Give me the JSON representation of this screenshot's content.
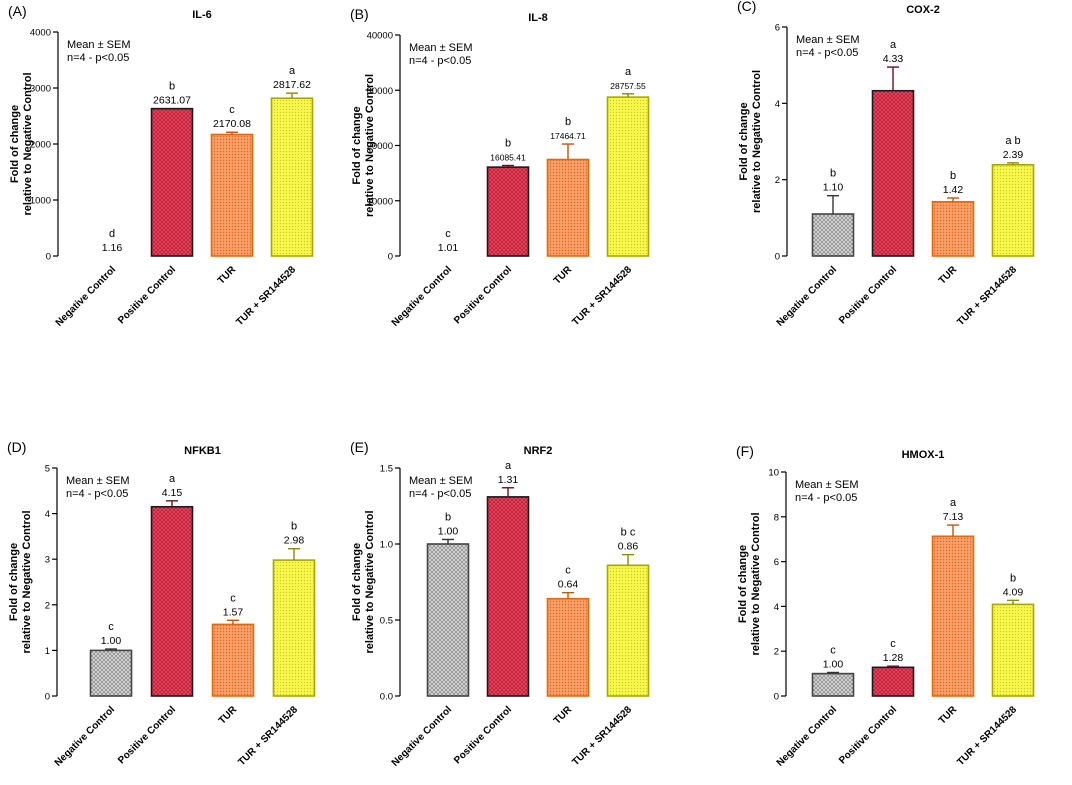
{
  "legend_lines": [
    "Mean ± SEM",
    "n=4 - p<0.05"
  ],
  "colors": {
    "negative_control": "#b8b8b8",
    "positive_control": "#e8455e",
    "tur": "#f5884a",
    "tur_sr": "#f2f23a",
    "negative_control_edge": "#444444",
    "positive_control_edge": "#1a1a1a",
    "tur_edge": "#e06a10",
    "tur_sr_edge": "#a8a800"
  },
  "chart_data": [
    {
      "panel": "(A)",
      "title": "IL-6",
      "type": "bar",
      "ylabel": [
        "Fold of change",
        "relative to Negative Control"
      ],
      "ylim": [
        0,
        4000
      ],
      "yticks": [
        "0",
        "1000",
        "2000",
        "3000",
        "4000"
      ],
      "categories": [
        "Negative Control",
        "Positive Control",
        "TUR",
        "TUR + SR144528"
      ],
      "values": [
        1.16,
        2631.07,
        2170.08,
        2817.62
      ],
      "sem": [
        0,
        0,
        40,
        90
      ],
      "value_labels": [
        "1.16",
        "2631.07",
        "2170.08",
        "2817.62"
      ],
      "letters": [
        "d",
        "b",
        "c",
        "a"
      ]
    },
    {
      "panel": "(B)",
      "title": "IL-8",
      "type": "bar",
      "ylabel": [
        "Fold of change",
        "relative to Negative Control"
      ],
      "ylim": [
        0,
        40000
      ],
      "yticks": [
        "0",
        "10000",
        "20000",
        "30000",
        "40000"
      ],
      "categories": [
        "Negative Control",
        "Positive Control",
        "TUR",
        "TUR + SR144528"
      ],
      "values": [
        1.01,
        16085.41,
        17464.71,
        28757.55
      ],
      "sem": [
        0,
        300,
        2800,
        600
      ],
      "value_labels": [
        "1.01",
        "16085.41",
        "17464.71",
        "28757.55"
      ],
      "letters": [
        "c",
        "b",
        "b",
        "a"
      ]
    },
    {
      "panel": "(C)",
      "title": "COX-2",
      "type": "bar",
      "ylabel": [
        "Fold of change",
        "relative to Negative Control"
      ],
      "ylim": [
        0,
        6
      ],
      "yticks": [
        "0",
        "2",
        "4",
        "6"
      ],
      "categories": [
        "Negative Control",
        "Positive Control",
        "TUR",
        "TUR + SR144528"
      ],
      "values": [
        1.1,
        4.33,
        1.42,
        2.39
      ],
      "sem": [
        0.48,
        0.62,
        0.1,
        0.05
      ],
      "value_labels": [
        "1.10",
        "4.33",
        "1.42",
        "2.39"
      ],
      "letters": [
        "b",
        "a",
        "b",
        "a b"
      ]
    },
    {
      "panel": "(D)",
      "title": "NFKB1",
      "type": "bar",
      "ylabel": [
        "Fold of change",
        "relative to Negative Control"
      ],
      "ylim": [
        0,
        5
      ],
      "yticks": [
        "0",
        "1",
        "2",
        "3",
        "4",
        "5"
      ],
      "categories": [
        "Negative Control",
        "Positive Control",
        "TUR",
        "TUR + SR144528"
      ],
      "values": [
        1.0,
        4.15,
        1.57,
        2.98
      ],
      "sem": [
        0.03,
        0.13,
        0.09,
        0.25
      ],
      "value_labels": [
        "1.00",
        "4.15",
        "1.57",
        "2.98"
      ],
      "letters": [
        "c",
        "a",
        "c",
        "b"
      ]
    },
    {
      "panel": "(E)",
      "title": "NRF2",
      "type": "bar",
      "ylabel": [
        "Fold of change",
        "relative to Negative Control"
      ],
      "ylim": [
        0,
        1.5
      ],
      "yticks": [
        "0.0",
        "0.5",
        "1.0",
        "1.5"
      ],
      "categories": [
        "Negative Control",
        "Positive Control",
        "TUR",
        "TUR + SR144528"
      ],
      "values": [
        1.0,
        1.31,
        0.64,
        0.86
      ],
      "sem": [
        0.03,
        0.06,
        0.04,
        0.07
      ],
      "value_labels": [
        "1.00",
        "1.31",
        "0.64",
        "0.86"
      ],
      "letters": [
        "b",
        "a",
        "c",
        "b c"
      ]
    },
    {
      "panel": "(F)",
      "title": "HMOX-1",
      "type": "bar",
      "ylabel": [
        "Fold of change",
        "relative to Negative Control"
      ],
      "ylim": [
        0,
        10
      ],
      "yticks": [
        "0",
        "2",
        "4",
        "6",
        "8",
        "10"
      ],
      "categories": [
        "Negative Control",
        "Positive Control",
        "TUR",
        "TUR + SR144528"
      ],
      "values": [
        1.0,
        1.28,
        7.13,
        4.09
      ],
      "sem": [
        0.05,
        0.05,
        0.5,
        0.18
      ],
      "value_labels": [
        "1.00",
        "1.28",
        "7.13",
        "4.09"
      ],
      "letters": [
        "c",
        "c",
        "a",
        "b"
      ]
    }
  ]
}
